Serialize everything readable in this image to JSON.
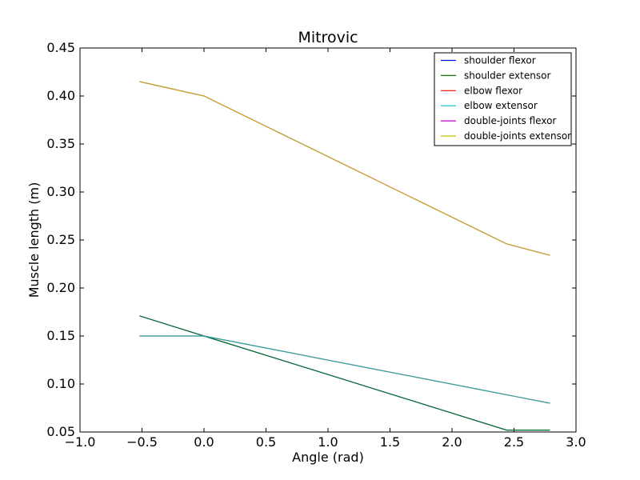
{
  "chart_data": {
    "type": "line",
    "title": "Mitrovic",
    "xlabel": "Angle (rad)",
    "ylabel": "Muscle length (m)",
    "xlim": [
      -1.0,
      3.0
    ],
    "ylim": [
      0.05,
      0.45
    ],
    "xticks": [
      "−1.0",
      "−0.5",
      "0.0",
      "0.5",
      "1.0",
      "1.5",
      "2.0",
      "2.5",
      "3.0"
    ],
    "yticks": [
      "0.05",
      "0.10",
      "0.15",
      "0.20",
      "0.25",
      "0.30",
      "0.35",
      "0.40",
      "0.45"
    ],
    "grid": false,
    "legend_position": "top-right",
    "series": [
      {
        "name": "shoulder flexor",
        "color": "#0000ff",
        "x": [
          -0.52,
          0.0,
          2.44,
          2.79
        ],
        "y": [
          0.171,
          0.15,
          0.052,
          0.052
        ]
      },
      {
        "name": "shoulder extensor",
        "color": "#008000",
        "x": [
          -0.52,
          0.0,
          2.44,
          2.79
        ],
        "y": [
          0.171,
          0.15,
          0.052,
          0.052
        ]
      },
      {
        "name": "elbow flexor",
        "color": "#ff0000",
        "x": [
          -0.52,
          0.0,
          2.79
        ],
        "y": [
          0.15,
          0.15,
          0.08
        ]
      },
      {
        "name": "elbow extensor",
        "color": "#00bfbf",
        "x": [
          -0.52,
          0.0,
          2.79
        ],
        "y": [
          0.15,
          0.15,
          0.08
        ]
      },
      {
        "name": "double-joints flexor",
        "color": "#bf00bf",
        "x": [
          -0.52,
          0.0,
          2.44,
          2.79
        ],
        "y": [
          0.415,
          0.4,
          0.246,
          0.234
        ]
      },
      {
        "name": "double-joints extensor",
        "color": "#bfbf00",
        "x": [
          -0.52,
          0.0,
          2.44,
          2.79
        ],
        "y": [
          0.415,
          0.4,
          0.246,
          0.234
        ]
      }
    ]
  }
}
